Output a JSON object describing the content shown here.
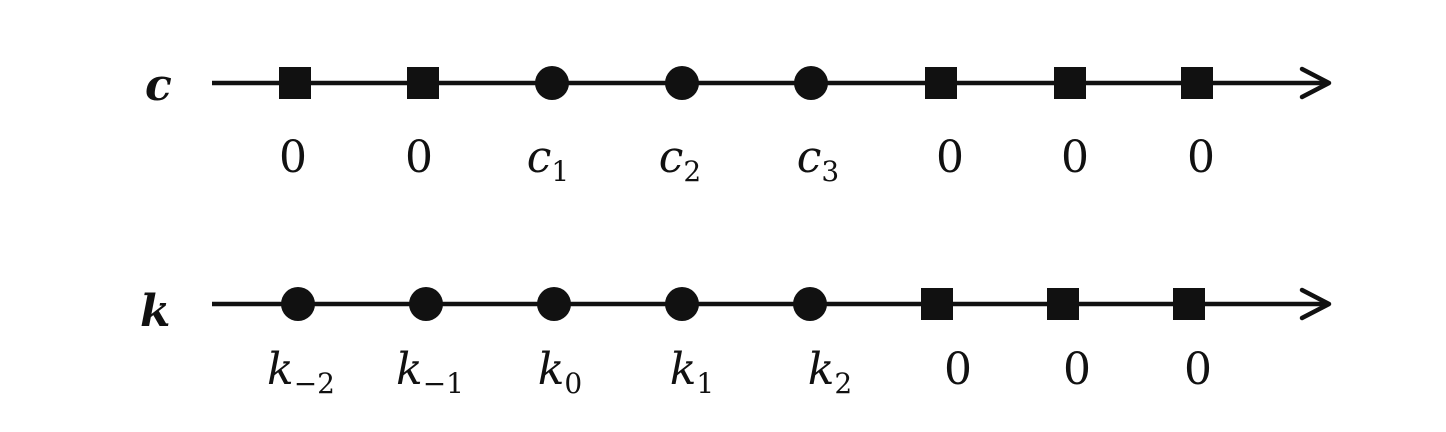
{
  "rows": [
    {
      "label": "c",
      "markers": [
        "square",
        "square",
        "circle",
        "circle",
        "circle",
        "square",
        "square",
        "square"
      ],
      "values": [
        {
          "main": "0",
          "sub": ""
        },
        {
          "main": "0",
          "sub": ""
        },
        {
          "main": "c",
          "sub": "1"
        },
        {
          "main": "c",
          "sub": "2"
        },
        {
          "main": "c",
          "sub": "3"
        },
        {
          "main": "0",
          "sub": ""
        },
        {
          "main": "0",
          "sub": ""
        },
        {
          "main": "0",
          "sub": ""
        }
      ]
    },
    {
      "label": "k",
      "markers": [
        "circle",
        "circle",
        "circle",
        "circle",
        "circle",
        "square",
        "square",
        "square"
      ],
      "values": [
        {
          "main": "k",
          "sub": "−2"
        },
        {
          "main": "k",
          "sub": "−1"
        },
        {
          "main": "k",
          "sub": "0"
        },
        {
          "main": "k",
          "sub": "1"
        },
        {
          "main": "k",
          "sub": "2"
        },
        {
          "main": "0",
          "sub": ""
        },
        {
          "main": "0",
          "sub": ""
        },
        {
          "main": "0",
          "sub": ""
        }
      ]
    }
  ]
}
